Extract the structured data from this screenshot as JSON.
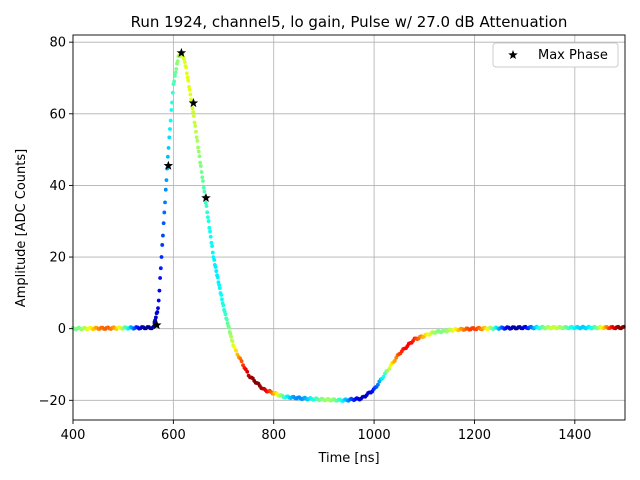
{
  "chart_data": {
    "type": "scatter",
    "title": "Run 1924, channel5, lo gain, Pulse w/ 27.0 dB Attenuation",
    "xlabel": "Time [ns]",
    "ylabel": "Amplitude [ADC Counts]",
    "xlim": [
      400,
      1500
    ],
    "ylim": [
      -25.5,
      82
    ],
    "xticks": [
      400,
      600,
      800,
      1000,
      1200,
      1400
    ],
    "yticks": [
      -20,
      0,
      20,
      40,
      60,
      80
    ],
    "grid": true,
    "legend_position": "top-right",
    "colormap": "jet",
    "pulse_samples": {
      "description": "pulse shape sampled at many phases, colored by phase",
      "x": [
        400,
        560,
        570,
        580,
        590,
        600,
        610,
        618,
        625,
        640,
        660,
        680,
        700,
        720,
        750,
        780,
        820,
        860,
        900,
        940,
        975,
        1000,
        1020,
        1050,
        1080,
        1120,
        1160,
        1200,
        1300,
        1400,
        1500
      ],
      "y": [
        0,
        0.3,
        6,
        28,
        50,
        68,
        76,
        77,
        73,
        60,
        40,
        20,
        6,
        -5,
        -13,
        -17,
        -19,
        -19.5,
        -19.8,
        -20,
        -19.5,
        -17,
        -13,
        -7,
        -3,
        -1,
        -0.3,
        0,
        0.3,
        0.3,
        0.3
      ]
    },
    "series": [
      {
        "name": "Max Phase",
        "marker": "star",
        "color": "#000000",
        "x": [
          567,
          590,
          616,
          640,
          665
        ],
        "y": [
          1,
          45.5,
          77,
          63,
          36.5
        ]
      }
    ]
  }
}
